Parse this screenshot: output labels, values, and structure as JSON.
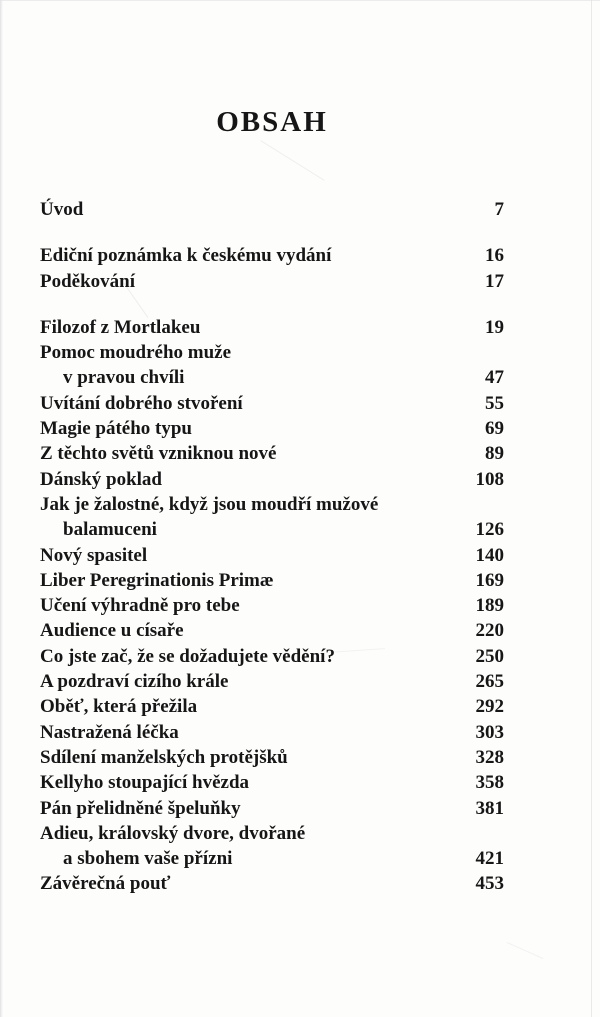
{
  "page": {
    "title": "OBSAH",
    "toc": [
      {
        "label": "Úvod",
        "page": "7"
      },
      {
        "label": "Ediční poznámka k českému vydání",
        "page": "16",
        "gap": true
      },
      {
        "label": "Poděkování",
        "page": "17"
      },
      {
        "label": "Filozof z Mortlakeu",
        "page": "19",
        "gap": true
      },
      {
        "label": "Pomoc moudrého muže",
        "label2": "v pravou chvíli",
        "page": "47"
      },
      {
        "label": "Uvítání dobrého stvoření",
        "page": "55"
      },
      {
        "label": "Magie pátého typu",
        "page": "69"
      },
      {
        "label": "Z těchto světů vzniknou nové",
        "page": "89"
      },
      {
        "label": "Dánský poklad",
        "page": "108"
      },
      {
        "label": "Jak je žalostné, když jsou moudří mužové",
        "label2": "balamuceni",
        "page": "126"
      },
      {
        "label": "Nový spasitel",
        "page": "140"
      },
      {
        "label": "Liber Peregrinationis Primæ",
        "page": "169"
      },
      {
        "label": "Učení výhradně pro tebe",
        "page": "189"
      },
      {
        "label": "Audience u císaře",
        "page": "220"
      },
      {
        "label": "Co jste zač, že se dožadujete vědění?",
        "page": "250"
      },
      {
        "label": "A pozdraví cizího krále",
        "page": "265"
      },
      {
        "label": "Oběť, která přežila",
        "page": "292"
      },
      {
        "label": "Nastražená léčka",
        "page": "303"
      },
      {
        "label": "Sdílení manželských protějšků",
        "page": "328"
      },
      {
        "label": "Kellyho stoupající hvězda",
        "page": "358"
      },
      {
        "label": "Pán přelidněné špeluňky",
        "page": "381"
      },
      {
        "label": "Adieu, královský dvore, dvořané",
        "label2": "a sbohem vaše přízni",
        "page": "421"
      },
      {
        "label": "Závěrečná pouť",
        "page": "453"
      }
    ]
  }
}
